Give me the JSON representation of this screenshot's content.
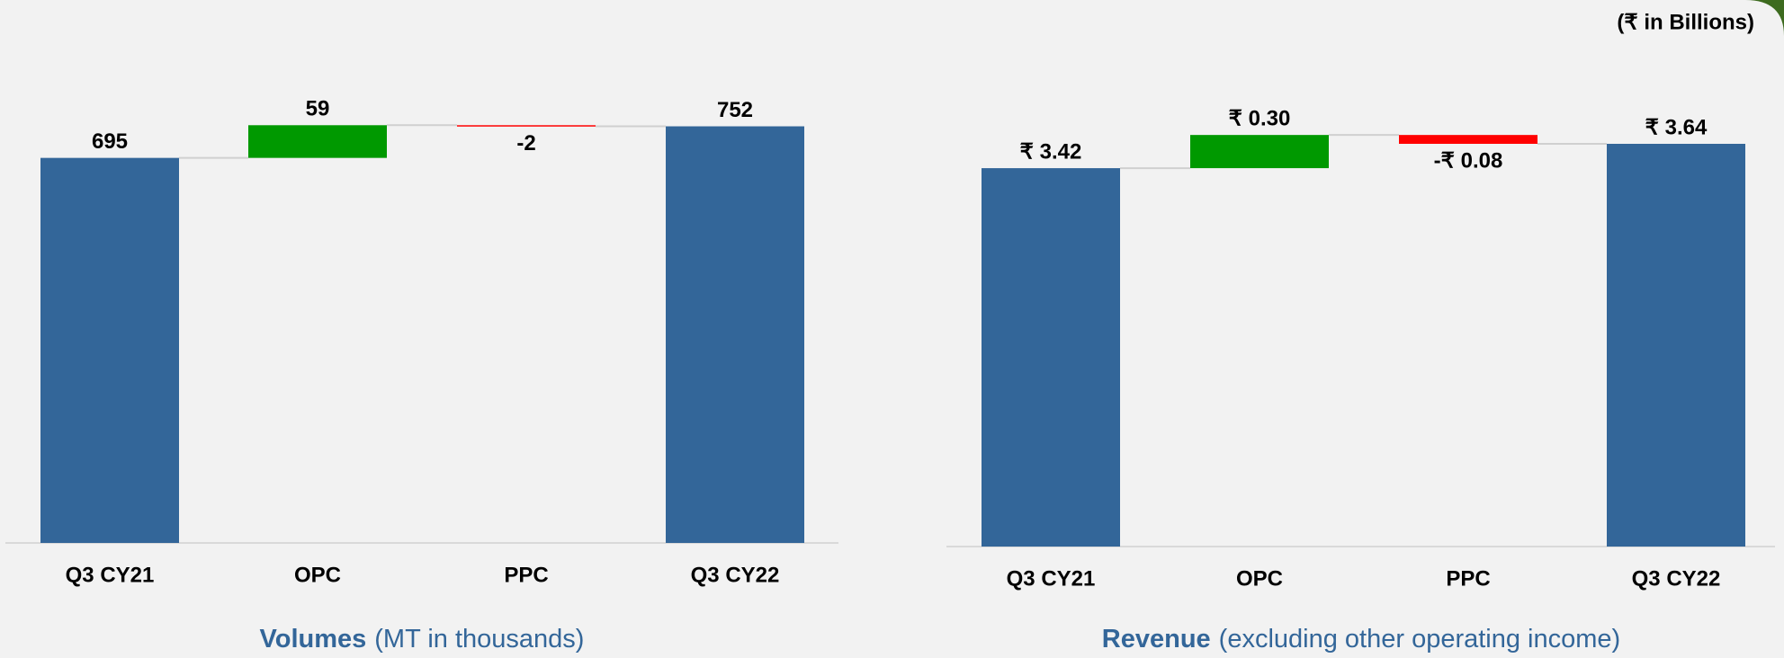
{
  "note": "(₹ in Billions)",
  "chart_data": [
    {
      "type": "waterfall",
      "title": "Volumes",
      "subtitle": "(MT in thousands)",
      "categories": [
        "Q3 CY21",
        "OPC",
        "PPC",
        "Q3 CY22"
      ],
      "values": [
        695,
        59,
        -2,
        752
      ],
      "measure": [
        "absolute",
        "relative",
        "relative",
        "total"
      ],
      "colors": {
        "total": "#336699",
        "increase": "#009900",
        "decrease": "#ff0000"
      },
      "ylim": [
        0,
        980
      ]
    },
    {
      "type": "waterfall",
      "title": "Revenue",
      "subtitle": "(excluding other operating income)",
      "categories": [
        "Q3 CY21",
        "OPC",
        "PPC",
        "Q3 CY22"
      ],
      "values": [
        3.42,
        0.3,
        -0.08,
        3.64
      ],
      "value_labels": [
        "₹ 3.42",
        "₹ 0.30",
        "-₹ 0.08",
        "₹ 3.64"
      ],
      "measure": [
        "absolute",
        "relative",
        "relative",
        "total"
      ],
      "colors": {
        "total": "#336699",
        "increase": "#009900",
        "decrease": "#ff0000"
      },
      "ylim": [
        0,
        4.94
      ]
    }
  ]
}
